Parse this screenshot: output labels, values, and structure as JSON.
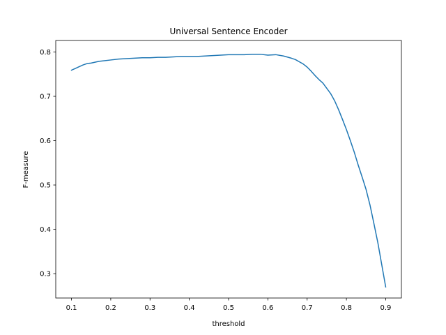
{
  "chart_data": {
    "type": "line",
    "title": "Universal Sentence Encoder",
    "xlabel": "threshold",
    "ylabel": "F-measure",
    "xlim": [
      0.06,
      0.94
    ],
    "ylim": [
      0.245,
      0.826
    ],
    "xticks": [
      0.1,
      0.2,
      0.3,
      0.4,
      0.5,
      0.6,
      0.7,
      0.8,
      0.9
    ],
    "xtick_labels": [
      "0.1",
      "0.2",
      "0.3",
      "0.4",
      "0.5",
      "0.6",
      "0.7",
      "0.8",
      "0.9"
    ],
    "yticks": [
      0.3,
      0.4,
      0.5,
      0.6,
      0.7,
      0.8
    ],
    "ytick_labels": [
      "0.3",
      "0.4",
      "0.5",
      "0.6",
      "0.7",
      "0.8"
    ],
    "grid": false,
    "series": [
      {
        "color": "#1f77b4",
        "x": [
          0.1,
          0.11,
          0.12,
          0.13,
          0.14,
          0.15,
          0.16,
          0.17,
          0.18,
          0.2,
          0.22,
          0.24,
          0.26,
          0.28,
          0.3,
          0.32,
          0.34,
          0.36,
          0.38,
          0.4,
          0.42,
          0.44,
          0.46,
          0.48,
          0.5,
          0.52,
          0.54,
          0.56,
          0.58,
          0.6,
          0.62,
          0.64,
          0.66,
          0.67,
          0.68,
          0.69,
          0.7,
          0.71,
          0.72,
          0.73,
          0.74,
          0.75,
          0.76,
          0.77,
          0.78,
          0.79,
          0.8,
          0.81,
          0.82,
          0.83,
          0.84,
          0.85,
          0.86,
          0.87,
          0.88,
          0.89,
          0.9
        ],
        "y": [
          0.759,
          0.763,
          0.767,
          0.771,
          0.774,
          0.775,
          0.777,
          0.779,
          0.78,
          0.782,
          0.784,
          0.785,
          0.786,
          0.787,
          0.787,
          0.788,
          0.788,
          0.789,
          0.79,
          0.79,
          0.79,
          0.791,
          0.792,
          0.793,
          0.794,
          0.794,
          0.794,
          0.795,
          0.795,
          0.793,
          0.794,
          0.791,
          0.786,
          0.783,
          0.778,
          0.773,
          0.766,
          0.757,
          0.747,
          0.738,
          0.73,
          0.718,
          0.706,
          0.69,
          0.67,
          0.648,
          0.625,
          0.6,
          0.574,
          0.545,
          0.518,
          0.49,
          0.455,
          0.413,
          0.37,
          0.32,
          0.27
        ]
      }
    ]
  }
}
